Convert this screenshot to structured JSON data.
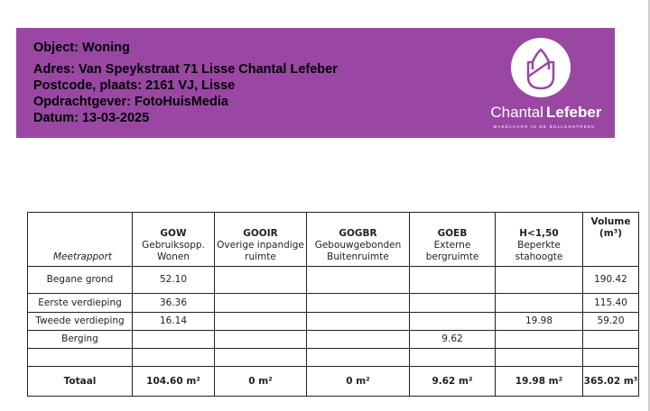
{
  "header": {
    "object": "Object: Woning",
    "adres": "Adres: Van Speykstraat 71 Lisse Chantal Lefeber",
    "postcode": "Postcode, plaats: 2161 VJ, Lisse",
    "opdrachtgever": "Opdrachtgever: FotoHuisMedia",
    "datum": "Datum: 13-03-2025"
  },
  "logo": {
    "name_light": "Chantal",
    "name_bold": "Lefeber",
    "tagline": "MAKELAARS IN DE BOLLENSTREEK"
  },
  "colors": {
    "banner": "#9a47a4"
  },
  "table": {
    "corner": "Meetrapport",
    "columns": [
      {
        "code": "GOW",
        "desc1": "Gebruiksopp.",
        "desc2": "Wonen"
      },
      {
        "code": "GOOIR",
        "desc1": "Overige inpandige",
        "desc2": "ruimte"
      },
      {
        "code": "GOGBR",
        "desc1": "Gebouwgebonden",
        "desc2": "Buitenruimte"
      },
      {
        "code": "GOEB",
        "desc1": "Externe",
        "desc2": "bergruimte"
      },
      {
        "code": "H<1,50",
        "desc1": "Beperkte",
        "desc2": "stahoogte"
      },
      {
        "code": "Volume",
        "desc1": "(m³)",
        "desc2": ""
      }
    ],
    "rows": [
      {
        "label": "Begane grond",
        "cells": [
          "52.10",
          "",
          "",
          "",
          "",
          "190.42"
        ]
      },
      {
        "label": "Eerste verdieping",
        "cells": [
          "36.36",
          "",
          "",
          "",
          "",
          "115.40"
        ]
      },
      {
        "label": "Tweede verdieping",
        "cells": [
          "16.14",
          "",
          "",
          "",
          "19.98",
          "59.20"
        ]
      },
      {
        "label": "Berging",
        "cells": [
          "",
          "",
          "",
          "9.62",
          "",
          ""
        ]
      },
      {
        "label": "",
        "cells": [
          "",
          "",
          "",
          "",
          "",
          ""
        ]
      }
    ],
    "total": {
      "label": "Totaal",
      "cells": [
        "104.60 m²",
        "0 m²",
        "0 m²",
        "9.62 m²",
        "19.98 m²",
        "365.02 m³"
      ]
    }
  }
}
